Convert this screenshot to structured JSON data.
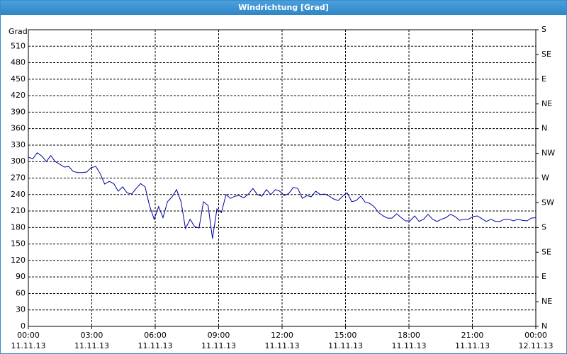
{
  "window_title": "Windrichtung [Grad]",
  "chart_data": {
    "type": "line",
    "ylabel": "Grad",
    "color": "#0000a0",
    "grid": true,
    "x": [
      0,
      0.21,
      0.42,
      0.64,
      0.85,
      1.06,
      1.27,
      1.49,
      1.7,
      1.91,
      2.12,
      2.34,
      2.55,
      2.76,
      2.97,
      3.19,
      3.4,
      3.61,
      3.82,
      4.04,
      4.25,
      4.46,
      4.67,
      4.89,
      5.1,
      5.31,
      5.52,
      5.73,
      5.95,
      6.16,
      6.37,
      6.58,
      6.8,
      7.01,
      7.22,
      7.43,
      7.65,
      7.86,
      8.07,
      8.28,
      8.5,
      8.71,
      8.92,
      9.13,
      9.35,
      9.56,
      9.77,
      9.98,
      10.19,
      10.41,
      10.62,
      10.83,
      11.04,
      11.26,
      11.47,
      11.68,
      11.89,
      12.11,
      12.32,
      12.53,
      12.74,
      12.96,
      13.17,
      13.38,
      13.59,
      13.81,
      14.02,
      14.23,
      14.44,
      14.65,
      14.87,
      15.08,
      15.29,
      15.5,
      15.72,
      15.93,
      16.14,
      16.35,
      16.57,
      16.78,
      16.99,
      17.2,
      17.42,
      17.63,
      17.84,
      18.05,
      18.27,
      18.48,
      18.69,
      18.9,
      19.12,
      19.33,
      19.54,
      19.75,
      19.96,
      20.18,
      20.39,
      20.6,
      20.81,
      21.03,
      21.24,
      21.45,
      21.66,
      21.88,
      22.09,
      22.3,
      22.51,
      22.73,
      22.94,
      23.15,
      23.36,
      23.58,
      23.79,
      24.0
    ],
    "values": [
      308,
      305,
      316,
      310,
      300,
      311,
      300,
      295,
      290,
      291,
      282,
      280,
      280,
      281,
      289,
      291,
      278,
      259,
      264,
      260,
      246,
      254,
      243,
      241,
      251,
      260,
      254,
      220,
      195,
      218,
      198,
      227,
      236,
      249,
      227,
      178,
      195,
      182,
      179,
      227,
      220,
      160,
      214,
      207,
      240,
      233,
      237,
      238,
      234,
      241,
      251,
      240,
      237,
      249,
      240,
      249,
      246,
      238,
      242,
      253,
      251,
      233,
      238,
      236,
      246,
      240,
      241,
      237,
      232,
      229,
      237,
      243,
      227,
      229,
      237,
      226,
      224,
      218,
      207,
      201,
      197,
      197,
      205,
      198,
      192,
      192,
      201,
      191,
      195,
      204,
      195,
      191,
      195,
      198,
      204,
      200,
      193,
      195,
      195,
      200,
      201,
      196,
      191,
      195,
      191,
      191,
      195,
      195,
      192,
      195,
      193,
      192,
      197,
      198
    ],
    "xlim": [
      0,
      24
    ],
    "xticks": [
      {
        "value": 0,
        "label": "00:00"
      },
      {
        "value": 3,
        "label": "03:00"
      },
      {
        "value": 6,
        "label": "06:00"
      },
      {
        "value": 9,
        "label": "09:00"
      },
      {
        "value": 12,
        "label": "12:00"
      },
      {
        "value": 15,
        "label": "15:00"
      },
      {
        "value": 18,
        "label": "18:00"
      },
      {
        "value": 21,
        "label": "21:00"
      },
      {
        "value": 24,
        "label": "00:00"
      }
    ],
    "xtick_dates": [
      "11.11.13",
      "11.11.13",
      "11.11.13",
      "11.11.13",
      "11.11.13",
      "11.11.13",
      "11.11.13",
      "11.11.13",
      "12.11.13"
    ],
    "ylim": [
      0,
      540
    ],
    "yticks": [
      0,
      30,
      60,
      90,
      120,
      150,
      180,
      210,
      240,
      270,
      300,
      330,
      360,
      390,
      420,
      450,
      480,
      510
    ],
    "y2lim": [
      0,
      540
    ],
    "y2ticks": [
      {
        "value": 0,
        "label": "N"
      },
      {
        "value": 45,
        "label": "NE"
      },
      {
        "value": 90,
        "label": "E"
      },
      {
        "value": 135,
        "label": "SE"
      },
      {
        "value": 180,
        "label": "S"
      },
      {
        "value": 225,
        "label": "SW"
      },
      {
        "value": 270,
        "label": "W"
      },
      {
        "value": 315,
        "label": "NW"
      },
      {
        "value": 360,
        "label": "N"
      },
      {
        "value": 405,
        "label": "NE"
      },
      {
        "value": 450,
        "label": "E"
      },
      {
        "value": 495,
        "label": "SE"
      },
      {
        "value": 540,
        "label": "S"
      }
    ]
  }
}
